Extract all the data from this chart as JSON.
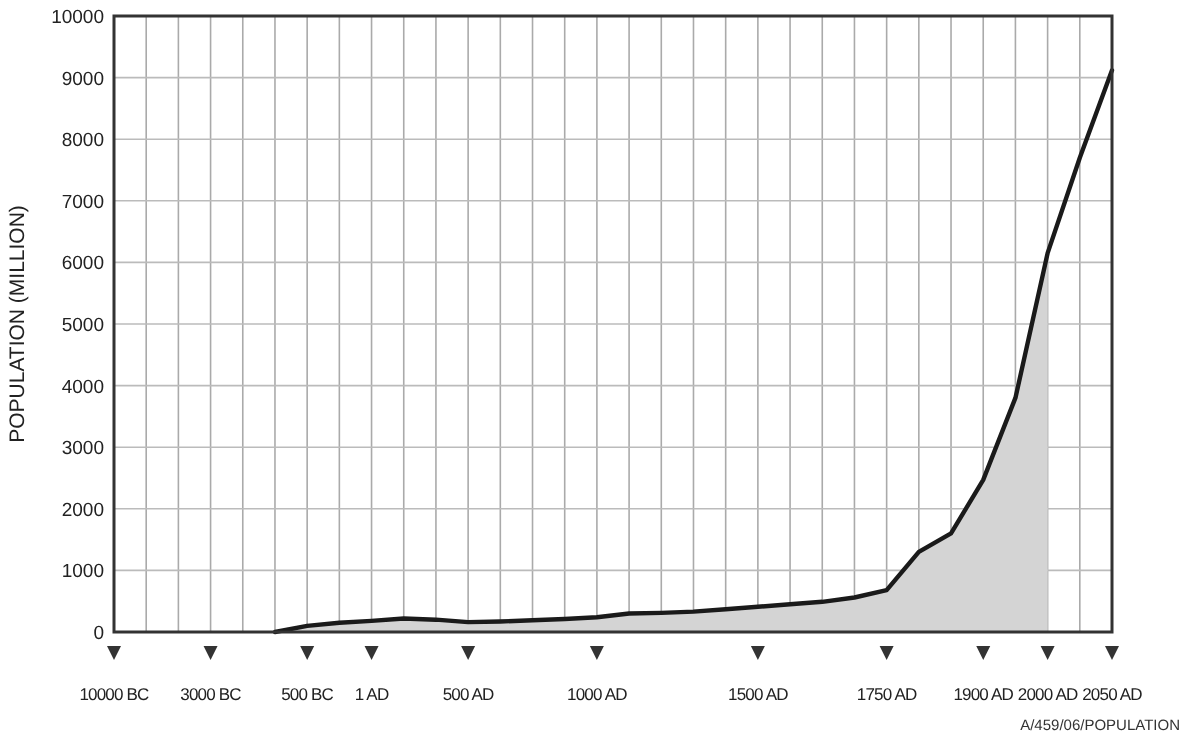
{
  "chart_data": {
    "type": "line",
    "ylabel": "POPULATION (MILLION)",
    "ylim": [
      0,
      10000
    ],
    "categories": [
      "10000 BC",
      null,
      null,
      "3000 BC",
      null,
      null,
      "500 BC",
      null,
      "1 AD",
      null,
      null,
      "500 AD",
      null,
      null,
      null,
      "1000 AD",
      null,
      null,
      null,
      null,
      "1500 AD",
      null,
      null,
      null,
      "1750 AD",
      null,
      null,
      "1900 AD",
      null,
      "2000 AD",
      null,
      "2050 AD"
    ],
    "yticks": [
      0,
      1000,
      2000,
      3000,
      4000,
      5000,
      6000,
      7000,
      8000,
      9000,
      10000
    ],
    "grid": true,
    "series": [
      {
        "type": "area",
        "color": "#d4d4d4",
        "values": [
          null,
          null,
          null,
          null,
          null,
          0,
          100,
          150,
          180,
          220,
          200,
          160,
          170,
          190,
          210,
          240,
          300,
          310,
          330,
          370,
          410,
          450,
          490,
          560,
          680,
          1300,
          1600,
          2470,
          3800,
          6150,
          null,
          null
        ]
      },
      {
        "color": "#1a1a1a",
        "values": [
          null,
          null,
          null,
          null,
          null,
          0,
          100,
          150,
          180,
          220,
          200,
          160,
          170,
          190,
          210,
          240,
          300,
          310,
          330,
          370,
          410,
          450,
          490,
          560,
          680,
          1300,
          1600,
          2470,
          3800,
          6150,
          7700,
          9120
        ]
      }
    ],
    "annotations": [
      "A/459/06/POPULATION"
    ]
  }
}
